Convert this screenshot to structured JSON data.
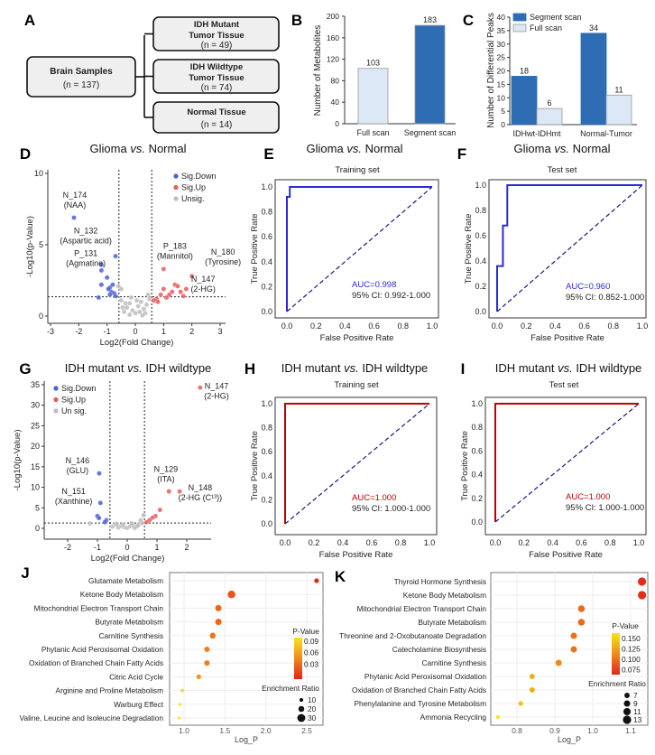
{
  "panel_labels": [
    "A",
    "B",
    "C",
    "D",
    "E",
    "F",
    "G",
    "H",
    "I",
    "J",
    "K"
  ],
  "panel_a": {
    "root": {
      "title": "Brain Samples",
      "n": "(n = 137)"
    },
    "groups": [
      {
        "line1": "IDH Mutant",
        "line2": "Tumor Tissue",
        "n": "(n = 49)"
      },
      {
        "line1": "IDH Wildtype",
        "line2": "Tumor Tissue",
        "n": "(n = 74)"
      },
      {
        "line1": "Normal Tissue",
        "line2": "",
        "n": "(n = 14)"
      }
    ]
  },
  "chart_data": [
    {
      "panel": "B",
      "type": "bar",
      "categories": [
        "Full scan",
        "Segment scan"
      ],
      "values": [
        103,
        183
      ],
      "data_labels": [
        "103",
        "183"
      ],
      "colors": [
        "#dce8f5",
        "#2e6db4"
      ],
      "ylabel": "Number of Metabolites",
      "ylim": [
        0,
        200
      ],
      "yticks": [
        "0",
        "40",
        "80",
        "120",
        "160",
        "200"
      ]
    },
    {
      "panel": "C",
      "type": "bar",
      "categories": [
        "IDHwt-IDHmt",
        "Normal-Tumor"
      ],
      "series": [
        {
          "name": "Segment scan",
          "values": [
            18,
            34
          ],
          "labels": [
            "18",
            "34"
          ],
          "color": "#2e6db4"
        },
        {
          "name": "Full scan",
          "values": [
            6,
            11
          ],
          "labels": [
            "6",
            "11"
          ],
          "color": "#dce8f5"
        }
      ],
      "ylabel": "Number of Differential Peaks",
      "ylim": [
        0,
        40
      ],
      "yticks": [
        "0",
        "5",
        "10",
        "15",
        "20",
        "25",
        "30",
        "35",
        "40"
      ],
      "legend": "top-left"
    },
    {
      "panel": "D",
      "type": "scatter",
      "title": {
        "pre": "Glioma ",
        "vs": "vs.",
        "post": " Normal"
      },
      "xlabel": "Log2(Fold Change)",
      "ylabel": "-Log10(p-Value)",
      "xlim": [
        -3,
        3
      ],
      "ylim": [
        0,
        10
      ],
      "xticks": [
        "-3",
        "-2",
        "-1",
        "0",
        "1",
        "2",
        "3"
      ],
      "yticks": [
        "0",
        "5",
        "10"
      ],
      "thresholds": {
        "fc": 0.58,
        "p": 1.35
      },
      "legend": "top-right",
      "series": [
        {
          "name": "Sig.Down",
          "color": "#4a5fd8",
          "points": [
            [
              -2.17,
              6.9
            ],
            [
              -0.7,
              4.2
            ],
            [
              -1.2,
              3.6
            ],
            [
              -1.2,
              3.2
            ],
            [
              -1.0,
              2.7
            ],
            [
              -1.2,
              2.2
            ],
            [
              -0.9,
              2.0
            ],
            [
              -0.8,
              2.2
            ],
            [
              -0.85,
              1.7
            ],
            [
              -1.3,
              1.3
            ],
            [
              -0.75,
              1.6
            ],
            [
              -0.7,
              1.4
            ],
            [
              -0.9,
              1.5
            ],
            [
              -0.95,
              1.9
            ]
          ]
        },
        {
          "name": "Sig.Up",
          "color": "#e85a5a",
          "points": [
            [
              1.0,
              3.3
            ],
            [
              2.0,
              2.8
            ],
            [
              1.4,
              2.2
            ],
            [
              1.5,
              2.1
            ],
            [
              1.6,
              1.7
            ],
            [
              1.3,
              1.7
            ],
            [
              1.0,
              1.9
            ],
            [
              0.9,
              1.5
            ],
            [
              1.1,
              1.3
            ],
            [
              0.75,
              1.2
            ],
            [
              0.8,
              1.0
            ],
            [
              1.2,
              1.5
            ],
            [
              1.8,
              1.9
            ],
            [
              0.65,
              1.1
            ],
            [
              1.7,
              1.4
            ]
          ]
        },
        {
          "name": "Unsig.",
          "color": "#bdbdbd",
          "points": [
            [
              -0.4,
              0.3
            ],
            [
              -0.3,
              0.6
            ],
            [
              -0.2,
              0.9
            ],
            [
              -0.1,
              0.4
            ],
            [
              0.0,
              0.2
            ],
            [
              0.1,
              0.7
            ],
            [
              0.2,
              1.0
            ],
            [
              0.3,
              0.5
            ],
            [
              0.4,
              0.8
            ],
            [
              -0.5,
              1.1
            ],
            [
              0.5,
              1.2
            ],
            [
              -0.2,
              0.1
            ],
            [
              0.15,
              0.3
            ],
            [
              -0.35,
              0.9
            ],
            [
              0.35,
              0.2
            ],
            [
              -0.6,
              2.1
            ],
            [
              -0.5,
              1.9
            ],
            [
              0.45,
              1.5
            ],
            [
              0.05,
              1.1
            ],
            [
              -0.15,
              1.3
            ],
            [
              0.25,
              0.05
            ],
            [
              -0.45,
              0.6
            ]
          ]
        }
      ],
      "annotations": [
        {
          "lines": [
            "N_174",
            "(NAA)"
          ],
          "at": [
            -2.14,
            8.3
          ]
        },
        {
          "lines": [
            "N_132",
            "(Aspartic acid)"
          ],
          "at": [
            -1.75,
            5.8
          ]
        },
        {
          "lines": [
            "P_131",
            "(Agmatine)"
          ],
          "at": [
            -1.75,
            4.2
          ]
        },
        {
          "lines": [
            "P_183",
            "(Mannitol)"
          ],
          "at": [
            1.4,
            4.7
          ]
        },
        {
          "lines": [
            "N_180",
            "(Tyrosine)"
          ],
          "at": [
            3.1,
            4.3
          ]
        },
        {
          "lines": [
            "N_147",
            "(2-HG)"
          ],
          "at": [
            2.4,
            2.4
          ]
        }
      ]
    },
    {
      "panel": "E",
      "type": "line",
      "title": {
        "pre": "Glioma ",
        "vs": "vs.",
        "post": " Normal"
      },
      "subtitle": "Training set",
      "xlabel": "False Positive Rate",
      "ylabel": "True Positive Rate",
      "xticks": [
        "0.0",
        "0.2",
        "0.4",
        "0.6",
        "0.8",
        "1.0"
      ],
      "yticks": [
        "0.0",
        "0.2",
        "0.4",
        "0.6",
        "0.8",
        "1.0"
      ],
      "curve": [
        [
          0,
          0
        ],
        [
          0,
          0.92
        ],
        [
          0.02,
          0.92
        ],
        [
          0.02,
          1
        ],
        [
          1,
          1
        ]
      ],
      "color": "#2b2bd6",
      "auc": "AUC=0.998",
      "ci": "95% CI: 0.992-1.000"
    },
    {
      "panel": "F",
      "type": "line",
      "title": {
        "pre": "Glioma ",
        "vs": "vs.",
        "post": " Normal"
      },
      "subtitle": "Test set",
      "xlabel": "False Positive Rate",
      "ylabel": "True Positive Rate",
      "xticks": [
        "0.0",
        "0.2",
        "0.4",
        "0.6",
        "0.8",
        "1.0"
      ],
      "yticks": [
        "0.0",
        "0.2",
        "0.4",
        "0.6",
        "0.8",
        "1.0"
      ],
      "curve": [
        [
          0,
          0
        ],
        [
          0,
          0.36
        ],
        [
          0.04,
          0.36
        ],
        [
          0.04,
          0.68
        ],
        [
          0.07,
          0.68
        ],
        [
          0.07,
          1
        ],
        [
          1,
          1
        ]
      ],
      "color": "#2b2bd6",
      "auc": "AUC=0.960",
      "ci": "95% CI: 0.852-1.000"
    },
    {
      "panel": "G",
      "type": "scatter",
      "title": {
        "pre": "IDH mutant ",
        "vs": "vs.",
        "post": " IDH wildtype"
      },
      "xlabel": "Log2(Fold Change)",
      "ylabel": "-Log10(p-Value)",
      "xlim": [
        -2.8,
        2.8
      ],
      "ylim": [
        0,
        35
      ],
      "xticks": [
        "-2",
        "-1",
        "0",
        "1",
        "2"
      ],
      "yticks": [
        "0",
        "5",
        "10",
        "15",
        "20",
        "25",
        "30",
        "35"
      ],
      "thresholds": {
        "fc": 0.58,
        "p": 1.3
      },
      "legend": "top-left",
      "series": [
        {
          "name": "Sig.Down",
          "color": "#4a5fd8",
          "points": [
            [
              -0.94,
              13.4
            ],
            [
              -0.9,
              6.2
            ],
            [
              -1.0,
              3.0
            ],
            [
              -0.95,
              2.5
            ],
            [
              -0.7,
              2.0
            ],
            [
              -0.75,
              1.5
            ]
          ]
        },
        {
          "name": "Sig.Up",
          "color": "#e85a5a",
          "points": [
            [
              2.45,
              34.3
            ],
            [
              1.4,
              9.0
            ],
            [
              1.76,
              9.0
            ],
            [
              1.1,
              4.5
            ],
            [
              0.95,
              3.0
            ],
            [
              0.85,
              2.6
            ],
            [
              0.75,
              2.0
            ],
            [
              0.65,
              1.5
            ]
          ]
        },
        {
          "name": "Un sig.",
          "color": "#bdbdbd",
          "points": [
            [
              -1.25,
              1.2
            ],
            [
              -0.5,
              0.4
            ],
            [
              -0.4,
              0.9
            ],
            [
              -0.3,
              0.2
            ],
            [
              -0.2,
              0.6
            ],
            [
              -0.1,
              0.3
            ],
            [
              0.0,
              0.1
            ],
            [
              0.1,
              0.5
            ],
            [
              0.2,
              0.8
            ],
            [
              0.3,
              0.4
            ],
            [
              0.4,
              1.0
            ],
            [
              0.5,
              1.3
            ],
            [
              0.45,
              2.0
            ],
            [
              0.55,
              3.2
            ],
            [
              -0.35,
              1.1
            ],
            [
              0.25,
              0.1
            ],
            [
              -0.15,
              0.9
            ],
            [
              0.15,
              1.2
            ],
            [
              0.35,
              0.6
            ]
          ]
        }
      ],
      "annotations": [
        {
          "lines": [
            "N_147",
            "(2-HG)"
          ],
          "at": [
            3.0,
            34.0
          ]
        },
        {
          "lines": [
            "N_146",
            "(GLU)"
          ],
          "at": [
            -1.67,
            15.8
          ]
        },
        {
          "lines": [
            "N_151",
            "(Xanthine)"
          ],
          "at": [
            -1.8,
            8.4
          ]
        },
        {
          "lines": [
            "N_129",
            "(ITA)"
          ],
          "at": [
            1.3,
            13.8
          ]
        },
        {
          "lines": [
            "N_148",
            "(2-HG (C¹³))"
          ],
          "at": [
            2.45,
            9.2
          ]
        }
      ]
    },
    {
      "panel": "H",
      "type": "line",
      "title": {
        "pre": "IDH mutant ",
        "vs": "vs.",
        "post": " IDH wildtype"
      },
      "subtitle": "Training set",
      "xlabel": "False Positive Rate",
      "ylabel": "True Positive Rate",
      "xticks": [
        "0.0",
        "0.2",
        "0.4",
        "0.6",
        "0.8",
        "1.0"
      ],
      "yticks": [
        "0.0",
        "0.2",
        "0.4",
        "0.6",
        "0.8",
        "1.0"
      ],
      "curve": [
        [
          0,
          0
        ],
        [
          0,
          1
        ],
        [
          1,
          1
        ]
      ],
      "color": "#c00000",
      "auc": "AUC=1.000",
      "ci": "95% CI: 1.000-1.000"
    },
    {
      "panel": "I",
      "type": "line",
      "title": {
        "pre": "IDH mutant ",
        "vs": "vs.",
        "post": " IDH wildtype"
      },
      "subtitle": "Test set",
      "xlabel": "False Positive Rate",
      "ylabel": "True Positive Rate",
      "xticks": [
        "0.0",
        "0.2",
        "0.4",
        "0.6",
        "0.8",
        "1.0"
      ],
      "yticks": [
        "0.0",
        "0.2",
        "0.4",
        "0.6",
        "0.8",
        "1.0"
      ],
      "curve": [
        [
          0,
          0
        ],
        [
          0,
          1
        ],
        [
          1,
          1
        ]
      ],
      "color": "#c00000",
      "auc": "AUC=1.000",
      "ci": "95% CI: 1.000-1.000"
    },
    {
      "panel": "J",
      "type": "scatter",
      "categories": [
        "Glutamate Metabolism",
        "Ketone Body Metabolism",
        "Mitochondrial Electron Transport Chain",
        "Butyrate Metabolism",
        "Carnitine Synthesis",
        "Phytanic Acid Peroxisomal Oxidation",
        "Oxidation of Branched Chain Fatty Acids",
        "Citric Acid Cycle",
        "Arginine and Proline Metabolism",
        "Warburg Effect",
        "Valine, Leucine and Isoleucine Degradation"
      ],
      "log_p": [
        2.62,
        1.58,
        1.42,
        1.42,
        1.35,
        1.28,
        1.28,
        1.18,
        0.98,
        0.95,
        0.94
      ],
      "p_value": [
        0.0024,
        0.026,
        0.038,
        0.038,
        0.045,
        0.052,
        0.052,
        0.066,
        0.105,
        0.112,
        0.115
      ],
      "enrichment_ratio": [
        14,
        28,
        22,
        22,
        20,
        18,
        18,
        14,
        6,
        5,
        4
      ],
      "xlabel": "Log_P",
      "xlim": [
        0.8,
        2.7
      ],
      "xticks": [
        "1.0",
        "1.5",
        "2.0",
        "2.5"
      ],
      "color_legend": {
        "title": "P-Value",
        "ticks": [
          "0.09",
          "0.06",
          "0.03"
        ],
        "range": [
          0.0,
          0.115
        ]
      },
      "size_legend": {
        "title": "Enrichment Ratio",
        "values": [
          "10",
          "20",
          "30"
        ]
      }
    },
    {
      "panel": "K",
      "type": "scatter",
      "categories": [
        "Thyroid Hormone Synthesis",
        "Ketone Body Metabolism",
        "Mitochondrial Electron Transport Chain",
        "Butyrate Metabolism",
        "Threonine and 2-Oxobutanoate Degradation",
        "Catecholamine Biosynthesis",
        "Carnitine Synthesis",
        "Phytanic Acid Peroxisomal Oxidation",
        "Oxidation of Branched Chain Fatty Acids",
        "Phenylalanine and Tyrosine Metabolism",
        "Ammonia Recycling"
      ],
      "log_p": [
        1.13,
        1.13,
        0.97,
        0.97,
        0.95,
        0.95,
        0.91,
        0.84,
        0.84,
        0.81,
        0.75
      ],
      "p_value": [
        0.074,
        0.074,
        0.107,
        0.107,
        0.112,
        0.112,
        0.123,
        0.145,
        0.145,
        0.155,
        0.178
      ],
      "enrichment_ratio": [
        13,
        13,
        10,
        10,
        9,
        9,
        9,
        7,
        7,
        6,
        4
      ],
      "xlabel": "Log_P",
      "xlim": [
        0.73,
        1.15
      ],
      "xticks": [
        "0.8",
        "0.9",
        "1.0",
        "1.1"
      ],
      "color_legend": {
        "title": "P-Value",
        "ticks": [
          "0.150",
          "0.125",
          "0.100",
          "0.075"
        ],
        "range": [
          0.07,
          0.178
        ]
      },
      "size_legend": {
        "title": "Enrichment Ratio",
        "values": [
          "7",
          "9",
          "11",
          "13"
        ]
      }
    }
  ]
}
